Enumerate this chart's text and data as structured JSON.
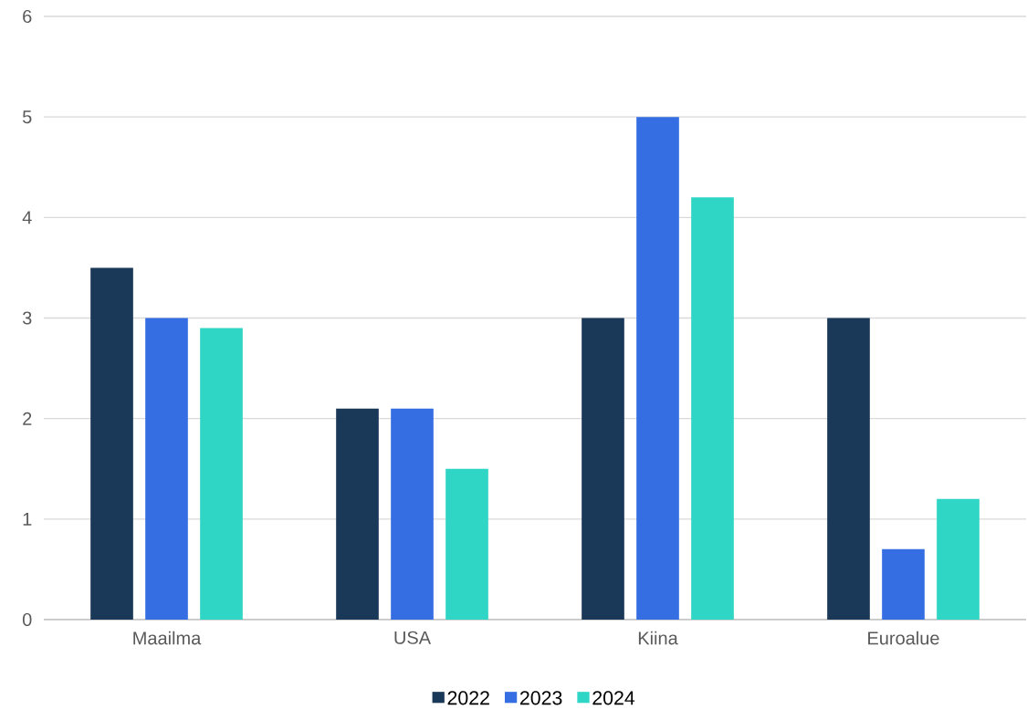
{
  "chart_data": {
    "type": "bar",
    "categories": [
      "Maailma",
      "USA",
      "Kiina",
      "Euroalue"
    ],
    "series": [
      {
        "name": "2022",
        "color": "#1a3858",
        "values": [
          3.5,
          2.1,
          3.0,
          3.0
        ]
      },
      {
        "name": "2023",
        "color": "#356ee3",
        "values": [
          3.0,
          2.1,
          5.0,
          0.7
        ]
      },
      {
        "name": "2024",
        "color": "#2fd5c5",
        "values": [
          2.9,
          1.5,
          4.2,
          1.2
        ]
      }
    ],
    "ylim": [
      0,
      6
    ],
    "yticks": [
      0,
      1,
      2,
      3,
      4,
      5,
      6
    ],
    "grid": "y",
    "legend": "bottom"
  }
}
